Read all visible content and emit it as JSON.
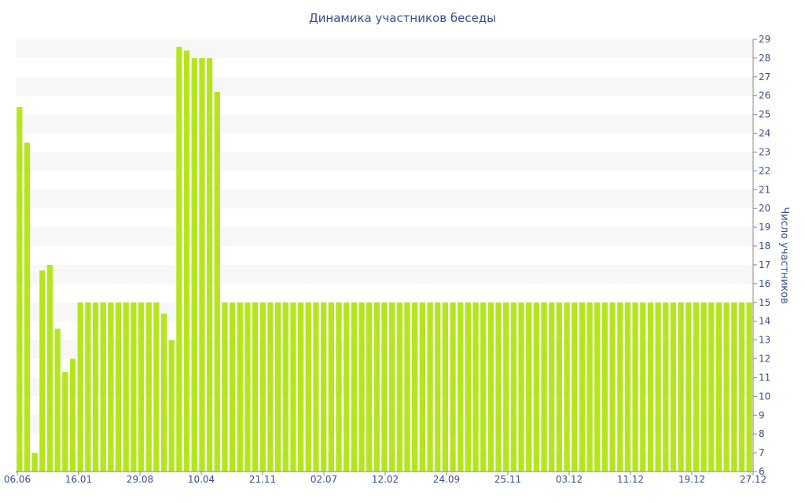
{
  "chart_data": {
    "type": "bar",
    "title": "Динамика участников беседы",
    "ylabel": "Число участников",
    "xlabel": "",
    "ylim": [
      6,
      29
    ],
    "yticks": [
      6,
      7,
      8,
      9,
      10,
      11,
      12,
      13,
      14,
      15,
      16,
      17,
      18,
      19,
      20,
      21,
      22,
      23,
      24,
      25,
      26,
      27,
      28,
      29
    ],
    "xticks": [
      "06.06",
      "16.01",
      "29.08",
      "10.04",
      "21.11",
      "02.07",
      "12.02",
      "24.09",
      "25.11",
      "03.12",
      "11.12",
      "19.12",
      "27.12"
    ],
    "grid": "horizontal bands",
    "bar_color": "#b5e61d",
    "values": [
      25.4,
      23.5,
      7,
      16.7,
      17,
      13.6,
      11.3,
      12,
      15,
      15,
      15,
      15,
      15,
      15,
      15,
      15,
      15,
      15,
      15,
      14.4,
      13,
      28.6,
      28.4,
      28,
      28,
      28,
      26.2,
      15,
      15,
      15,
      15,
      15,
      15,
      15,
      15,
      15,
      15,
      15,
      15,
      15,
      15,
      15,
      15,
      15,
      15,
      15,
      15,
      15,
      15,
      15,
      15,
      15,
      15,
      15,
      15,
      15,
      15,
      15,
      15,
      15,
      15,
      15,
      15,
      15,
      15,
      15,
      15,
      15,
      15,
      15,
      15,
      15,
      15,
      15,
      15,
      15,
      15,
      15,
      15,
      15,
      15,
      15,
      15,
      15,
      15,
      15,
      15,
      15,
      15,
      15,
      15,
      15,
      15,
      15,
      15,
      15,
      15
    ]
  }
}
